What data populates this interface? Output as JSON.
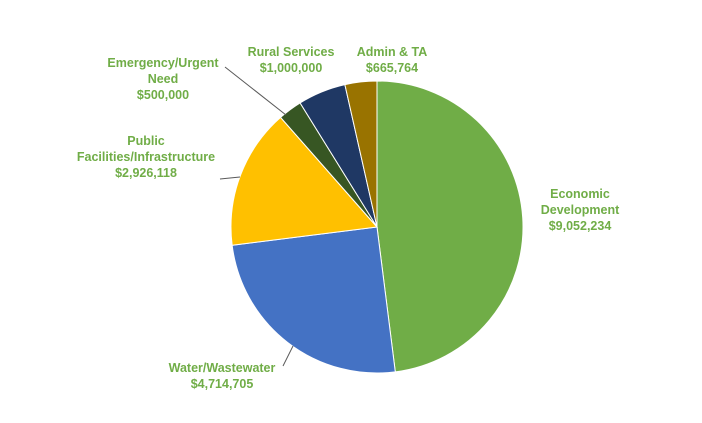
{
  "chart_data": {
    "type": "pie",
    "title": "",
    "start_angle_deg": 0,
    "direction": "clockwise",
    "label_color": "#70ad47",
    "leader_color": "#595959",
    "slices": [
      {
        "name": "Economic Development",
        "label_lines": [
          "Economic",
          "Development"
        ],
        "value_label": "$9,052,234",
        "value": 9052234,
        "color": "#70ad47"
      },
      {
        "name": "Water/Wastewater",
        "label_lines": [
          "Water/Wastewater"
        ],
        "value_label": "$4,714,705",
        "value": 4714705,
        "color": "#4472c4"
      },
      {
        "name": "Public Facilities/Infrastructure",
        "label_lines": [
          "Public",
          "Facilities/Infrastructure"
        ],
        "value_label": "$2,926,118",
        "value": 2926118,
        "color": "#ffc000"
      },
      {
        "name": "Emergency/Urgent Need",
        "label_lines": [
          "Emergency/Urgent",
          "Need"
        ],
        "value_label": "$500,000",
        "value": 500000,
        "color": "#375623"
      },
      {
        "name": "Rural Services",
        "label_lines": [
          "Rural Services"
        ],
        "value_label": "$1,000,000",
        "value": 1000000,
        "color": "#1f3864"
      },
      {
        "name": "Admin & TA",
        "label_lines": [
          "Admin & TA"
        ],
        "value_label": "$665,764",
        "value": 665764,
        "color": "#997300"
      }
    ]
  }
}
